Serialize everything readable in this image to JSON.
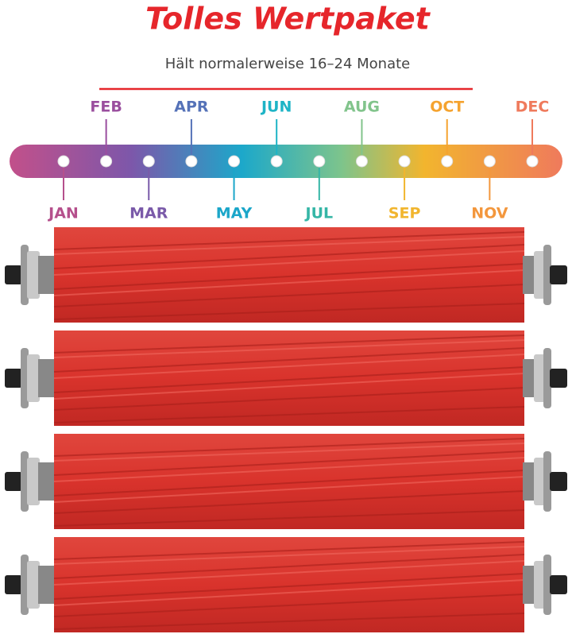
{
  "header": {
    "title": "Tolles Wertpaket",
    "subtitle": "Hält normalerweise 16–24 Monate"
  },
  "timeline": {
    "months": [
      {
        "label": "JAN",
        "color": "#b5508c"
      },
      {
        "label": "FEB",
        "color": "#9a4e9e"
      },
      {
        "label": "MAR",
        "color": "#7a5aa9"
      },
      {
        "label": "APR",
        "color": "#5572b8"
      },
      {
        "label": "MAY",
        "color": "#1ba6c9"
      },
      {
        "label": "JUN",
        "color": "#1eb4c6"
      },
      {
        "label": "JUL",
        "color": "#35b6a6"
      },
      {
        "label": "AUG",
        "color": "#82c48c"
      },
      {
        "label": "SEP",
        "color": "#f1b52e"
      },
      {
        "label": "OCT",
        "color": "#f5a32f"
      },
      {
        "label": "NOV",
        "color": "#f3973d"
      },
      {
        "label": "DEC",
        "color": "#ef7a5c"
      }
    ]
  }
}
